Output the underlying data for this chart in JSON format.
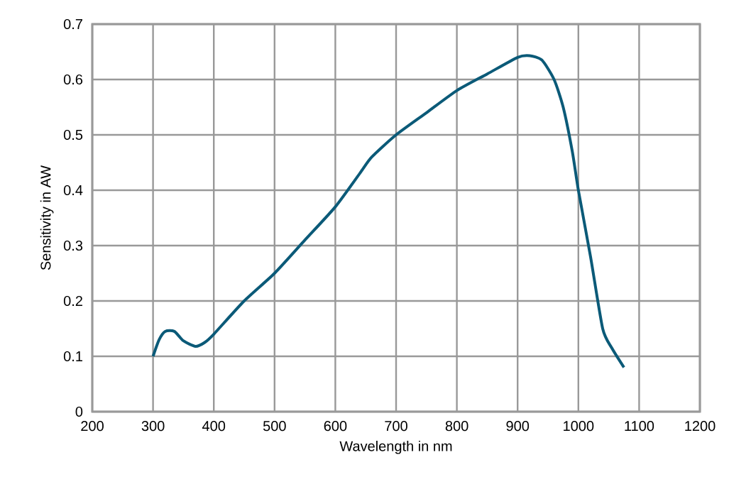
{
  "chart_data": {
    "type": "line",
    "xlabel": "Wavelength in nm",
    "ylabel": "Sensitivity in AW",
    "x": [
      300,
      310,
      320,
      335,
      350,
      370,
      385,
      400,
      450,
      500,
      550,
      600,
      640,
      660,
      700,
      750,
      800,
      850,
      900,
      920,
      940,
      960,
      975,
      990,
      1000,
      1020,
      1040,
      1055,
      1075
    ],
    "series": [
      {
        "color": "#0b5a78",
        "values": [
          0.1,
          0.13,
          0.145,
          0.145,
          0.128,
          0.118,
          0.125,
          0.14,
          0.2,
          0.25,
          0.31,
          0.37,
          0.43,
          0.46,
          0.5,
          0.54,
          0.58,
          0.61,
          0.64,
          0.643,
          0.635,
          0.6,
          0.55,
          0.47,
          0.4,
          0.28,
          0.15,
          0.115,
          0.08
        ]
      }
    ],
    "xlim": [
      200,
      1200
    ],
    "ylim": [
      0,
      0.7
    ],
    "xticks": [
      200,
      300,
      400,
      500,
      600,
      700,
      800,
      900,
      1000,
      1100,
      1200
    ],
    "yticks": [
      0,
      0.1,
      0.2,
      0.3,
      0.4,
      0.5,
      0.6,
      0.7
    ],
    "grid": true,
    "marker": "none",
    "line_style": "solid"
  }
}
